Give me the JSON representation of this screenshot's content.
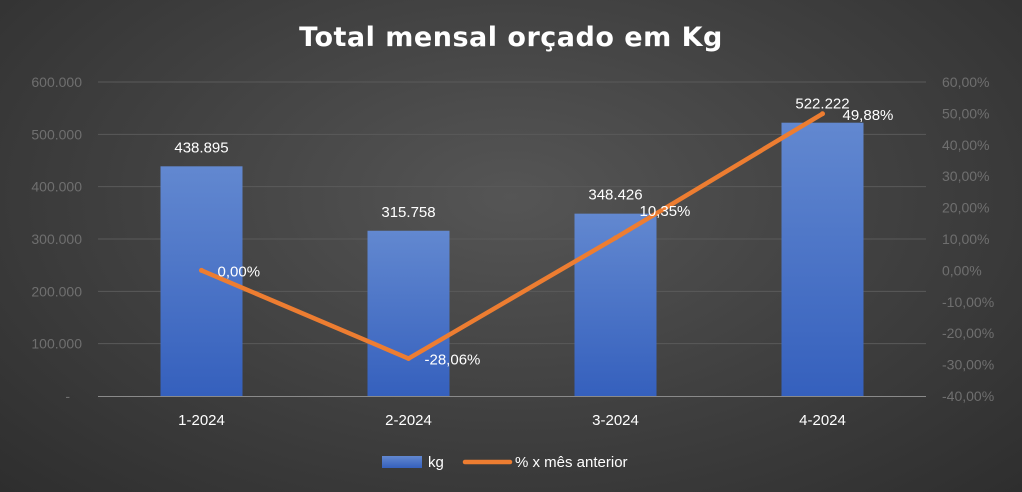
{
  "chart_data": {
    "type": "bar",
    "title": "Total mensal orçado em Kg",
    "categories": [
      "1-2024",
      "2-2024",
      "3-2024",
      "4-2024"
    ],
    "series": [
      {
        "name": "kg",
        "type": "bar",
        "axis": "left",
        "values": [
          438895,
          315758,
          348426,
          522222
        ],
        "labels": [
          "438.895",
          "315.758",
          "348.426",
          "522.222"
        ],
        "color": "#4472C4"
      },
      {
        "name": "% x mês anterior",
        "type": "line",
        "axis": "right",
        "values": [
          0.0,
          -28.06,
          10.35,
          49.88
        ],
        "labels": [
          "0,00%",
          "-28,06%",
          "10,35%",
          "49,88%"
        ],
        "color": "#ED7D31"
      }
    ],
    "y_left": {
      "min": 0,
      "max": 600000,
      "ticks": [
        0,
        100000,
        200000,
        300000,
        400000,
        500000,
        600000
      ],
      "tick_labels": [
        "-",
        "100.000",
        "200.000",
        "300.000",
        "400.000",
        "500.000",
        "600.000"
      ]
    },
    "y_right": {
      "min": -40,
      "max": 60,
      "ticks": [
        -40,
        -30,
        -20,
        -10,
        0,
        10,
        20,
        30,
        40,
        50,
        60
      ],
      "tick_labels": [
        "-40,00%",
        "-30,00%",
        "-20,00%",
        "-10,00%",
        "0,00%",
        "10,00%",
        "20,00%",
        "30,00%",
        "40,00%",
        "50,00%",
        "60,00%"
      ]
    },
    "grid": true,
    "legend_position": "bottom",
    "colors": {
      "bar": "#4472C4",
      "line": "#ED7D31",
      "grid": "#5a5a5a"
    }
  }
}
